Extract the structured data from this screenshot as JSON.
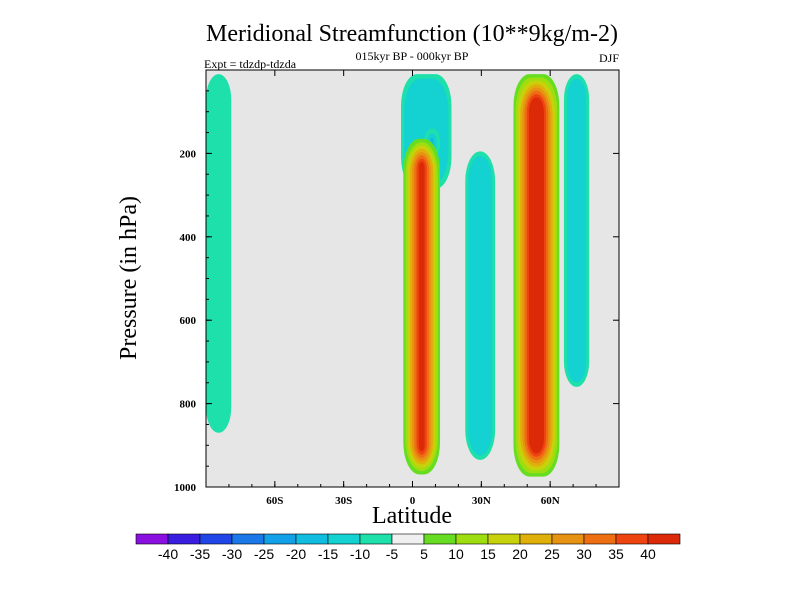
{
  "title": "Meridional Streamfunction (10**9kg/m-2)",
  "subtitle_center": "015kyr BP - 000kyr BP",
  "subtitle_left": "Expt = tdzdp-tdzda",
  "subtitle_right": "DJF",
  "colors": {
    "background_field": "#e6e6e6",
    "frame": "#000000"
  },
  "chart_data": {
    "type": "heatmap",
    "title": "Meridional Streamfunction (10**9kg/m-2)",
    "xlabel": "Latitude",
    "ylabel": "Pressure (in hPa)",
    "xlim": [
      -90,
      90
    ],
    "ylim": [
      1000,
      0
    ],
    "xticks": [
      {
        "value": -60,
        "label": "60S"
      },
      {
        "value": -30,
        "label": "30S"
      },
      {
        "value": 0,
        "label": "0"
      },
      {
        "value": 30,
        "label": "30N"
      },
      {
        "value": 60,
        "label": "60N"
      }
    ],
    "yticks": [
      {
        "value": 200,
        "label": "200"
      },
      {
        "value": 400,
        "label": "400"
      },
      {
        "value": 600,
        "label": "600"
      },
      {
        "value": 800,
        "label": "800"
      },
      {
        "value": 1000,
        "label": "1000"
      }
    ],
    "colorbar": {
      "levels": [
        "-40",
        "-35",
        "-30",
        "-25",
        "-20",
        "-15",
        "-10",
        "-5",
        "5",
        "10",
        "15",
        "20",
        "25",
        "30",
        "35",
        "40"
      ],
      "colors": [
        "#8a10e0",
        "#3a1ee0",
        "#2046e8",
        "#1a78e8",
        "#12a0e8",
        "#10bce0",
        "#14d2d2",
        "#1ee0aa",
        "#f0f0f0",
        "#66dd22",
        "#9ede10",
        "#c8d20c",
        "#e0b00a",
        "#e69212",
        "#ee6e14",
        "#ee4410",
        "#dc2a08"
      ]
    },
    "features": [
      {
        "name": "southern-polar-negative-column",
        "lat_range": [
          -90,
          -79
        ],
        "p_range": [
          10,
          870
        ],
        "value": -7
      },
      {
        "name": "equatorial-negative-upper-cell",
        "lat_range": [
          -5,
          17
        ],
        "p_range": [
          10,
          285
        ],
        "value": -12
      },
      {
        "name": "equatorial-negative-core",
        "lat_range": [
          5,
          12
        ],
        "p_range": [
          140,
          210
        ],
        "value": -18
      },
      {
        "name": "equatorial-positive-cell",
        "lat_range": [
          -4,
          12
        ],
        "p_range": [
          165,
          970
        ],
        "value": 40
      },
      {
        "name": "subtropical-negative-column",
        "lat_range": [
          23,
          36
        ],
        "p_range": [
          195,
          935
        ],
        "value": -12
      },
      {
        "name": "northern-positive-cell",
        "lat_range": [
          44,
          64
        ],
        "p_range": [
          10,
          975
        ],
        "value": 40
      },
      {
        "name": "northern-polar-negative-column",
        "lat_range": [
          66,
          77
        ],
        "p_range": [
          10,
          760
        ],
        "value": -10
      }
    ]
  }
}
